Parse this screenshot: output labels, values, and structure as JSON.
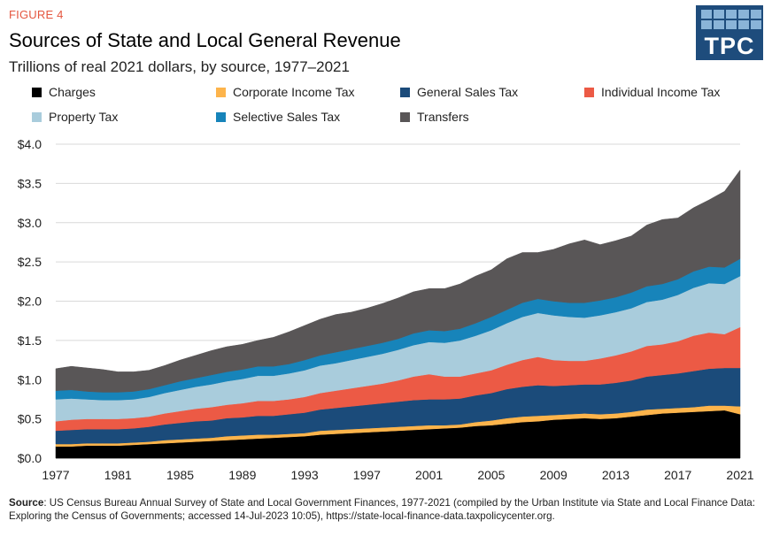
{
  "header": {
    "figure_label": "FIGURE 4",
    "title": "Sources of State and Local General Revenue",
    "subtitle": "Trillions of real 2021 dollars, by source, 1977–2021"
  },
  "logo": {
    "text": "TPC",
    "color": "#1e4c7c"
  },
  "source": {
    "label": "Source",
    "text": ": US Census Bureau Annual Survey of State and Local Government Finances, 1977-2021 (compiled by the Urban Institute via State and Local Finance Data: Exploring the Census of Governments; accessed 14-Jul-2023 10:05), https://state-local-finance-data.taxpolicycenter.org."
  },
  "chart_data": {
    "type": "area",
    "stacked": true,
    "x": [
      1977,
      1978,
      1979,
      1980,
      1981,
      1982,
      1983,
      1984,
      1985,
      1986,
      1987,
      1988,
      1989,
      1990,
      1991,
      1992,
      1993,
      1994,
      1995,
      1996,
      1997,
      1998,
      1999,
      2000,
      2001,
      2002,
      2003,
      2004,
      2005,
      2006,
      2007,
      2008,
      2009,
      2010,
      2011,
      2012,
      2013,
      2014,
      2015,
      2016,
      2017,
      2018,
      2019,
      2020,
      2021
    ],
    "xticks": [
      1977,
      1981,
      1985,
      1989,
      1993,
      1997,
      2001,
      2005,
      2009,
      2013,
      2017,
      2021
    ],
    "ylim": [
      0,
      4
    ],
    "yticks": [
      0,
      0.5,
      1.0,
      1.5,
      2.0,
      2.5,
      3.0,
      3.5,
      4.0
    ],
    "ytick_labels": [
      "$0.0",
      "$0.5",
      "$1.0",
      "$1.5",
      "$2.0",
      "$2.5",
      "$3.0",
      "$3.5",
      "$4.0"
    ],
    "grid": "horizontal",
    "legend_position": "top",
    "series": [
      {
        "name": "Charges",
        "color": "#000000",
        "values": [
          0.15,
          0.15,
          0.16,
          0.16,
          0.16,
          0.17,
          0.18,
          0.19,
          0.2,
          0.21,
          0.22,
          0.23,
          0.24,
          0.25,
          0.26,
          0.27,
          0.28,
          0.3,
          0.31,
          0.32,
          0.33,
          0.34,
          0.35,
          0.36,
          0.37,
          0.38,
          0.39,
          0.41,
          0.42,
          0.44,
          0.46,
          0.47,
          0.49,
          0.5,
          0.51,
          0.5,
          0.51,
          0.53,
          0.55,
          0.57,
          0.58,
          0.59,
          0.6,
          0.61,
          0.56
        ]
      },
      {
        "name": "Corporate Income Tax",
        "color": "#fdb44b",
        "values": [
          0.03,
          0.03,
          0.03,
          0.03,
          0.03,
          0.03,
          0.03,
          0.04,
          0.04,
          0.04,
          0.04,
          0.05,
          0.05,
          0.05,
          0.04,
          0.04,
          0.04,
          0.05,
          0.05,
          0.05,
          0.05,
          0.05,
          0.05,
          0.05,
          0.05,
          0.04,
          0.04,
          0.05,
          0.06,
          0.07,
          0.07,
          0.07,
          0.06,
          0.06,
          0.06,
          0.06,
          0.06,
          0.06,
          0.07,
          0.06,
          0.06,
          0.06,
          0.07,
          0.06,
          0.1
        ]
      },
      {
        "name": "General Sales Tax",
        "color": "#1b4b7a",
        "values": [
          0.17,
          0.18,
          0.18,
          0.18,
          0.18,
          0.18,
          0.19,
          0.2,
          0.21,
          0.22,
          0.22,
          0.23,
          0.23,
          0.24,
          0.24,
          0.25,
          0.26,
          0.27,
          0.28,
          0.29,
          0.3,
          0.31,
          0.32,
          0.33,
          0.33,
          0.33,
          0.33,
          0.34,
          0.35,
          0.37,
          0.38,
          0.39,
          0.37,
          0.37,
          0.37,
          0.38,
          0.39,
          0.4,
          0.42,
          0.43,
          0.44,
          0.46,
          0.47,
          0.48,
          0.49
        ]
      },
      {
        "name": "Individual Income Tax",
        "color": "#ec5a45",
        "values": [
          0.12,
          0.13,
          0.13,
          0.13,
          0.13,
          0.13,
          0.13,
          0.14,
          0.15,
          0.16,
          0.17,
          0.17,
          0.18,
          0.19,
          0.19,
          0.19,
          0.2,
          0.21,
          0.22,
          0.23,
          0.24,
          0.25,
          0.27,
          0.3,
          0.32,
          0.29,
          0.28,
          0.28,
          0.29,
          0.31,
          0.34,
          0.36,
          0.33,
          0.31,
          0.3,
          0.33,
          0.35,
          0.37,
          0.39,
          0.39,
          0.41,
          0.45,
          0.46,
          0.43,
          0.52
        ]
      },
      {
        "name": "Property Tax",
        "color": "#a9ccdc",
        "values": [
          0.28,
          0.27,
          0.25,
          0.24,
          0.24,
          0.24,
          0.25,
          0.26,
          0.27,
          0.28,
          0.29,
          0.3,
          0.31,
          0.32,
          0.32,
          0.33,
          0.34,
          0.35,
          0.35,
          0.36,
          0.37,
          0.38,
          0.39,
          0.4,
          0.41,
          0.43,
          0.46,
          0.48,
          0.51,
          0.53,
          0.55,
          0.56,
          0.57,
          0.56,
          0.55,
          0.55,
          0.55,
          0.55,
          0.56,
          0.57,
          0.59,
          0.61,
          0.63,
          0.64,
          0.65
        ]
      },
      {
        "name": "Selective Sales Tax",
        "color": "#1784ba",
        "values": [
          0.11,
          0.11,
          0.1,
          0.1,
          0.1,
          0.1,
          0.1,
          0.1,
          0.11,
          0.11,
          0.12,
          0.12,
          0.12,
          0.12,
          0.12,
          0.12,
          0.13,
          0.13,
          0.14,
          0.14,
          0.14,
          0.14,
          0.14,
          0.15,
          0.15,
          0.15,
          0.15,
          0.16,
          0.17,
          0.17,
          0.18,
          0.18,
          0.18,
          0.18,
          0.19,
          0.19,
          0.19,
          0.2,
          0.2,
          0.2,
          0.2,
          0.21,
          0.21,
          0.21,
          0.22
        ]
      },
      {
        "name": "Transfers",
        "color": "#595657",
        "values": [
          0.28,
          0.3,
          0.3,
          0.29,
          0.26,
          0.25,
          0.24,
          0.25,
          0.27,
          0.29,
          0.31,
          0.32,
          0.32,
          0.33,
          0.37,
          0.41,
          0.44,
          0.46,
          0.48,
          0.47,
          0.48,
          0.5,
          0.52,
          0.53,
          0.53,
          0.54,
          0.57,
          0.6,
          0.6,
          0.65,
          0.64,
          0.59,
          0.66,
          0.75,
          0.8,
          0.71,
          0.72,
          0.72,
          0.78,
          0.82,
          0.78,
          0.81,
          0.85,
          0.97,
          1.13
        ]
      }
    ]
  }
}
